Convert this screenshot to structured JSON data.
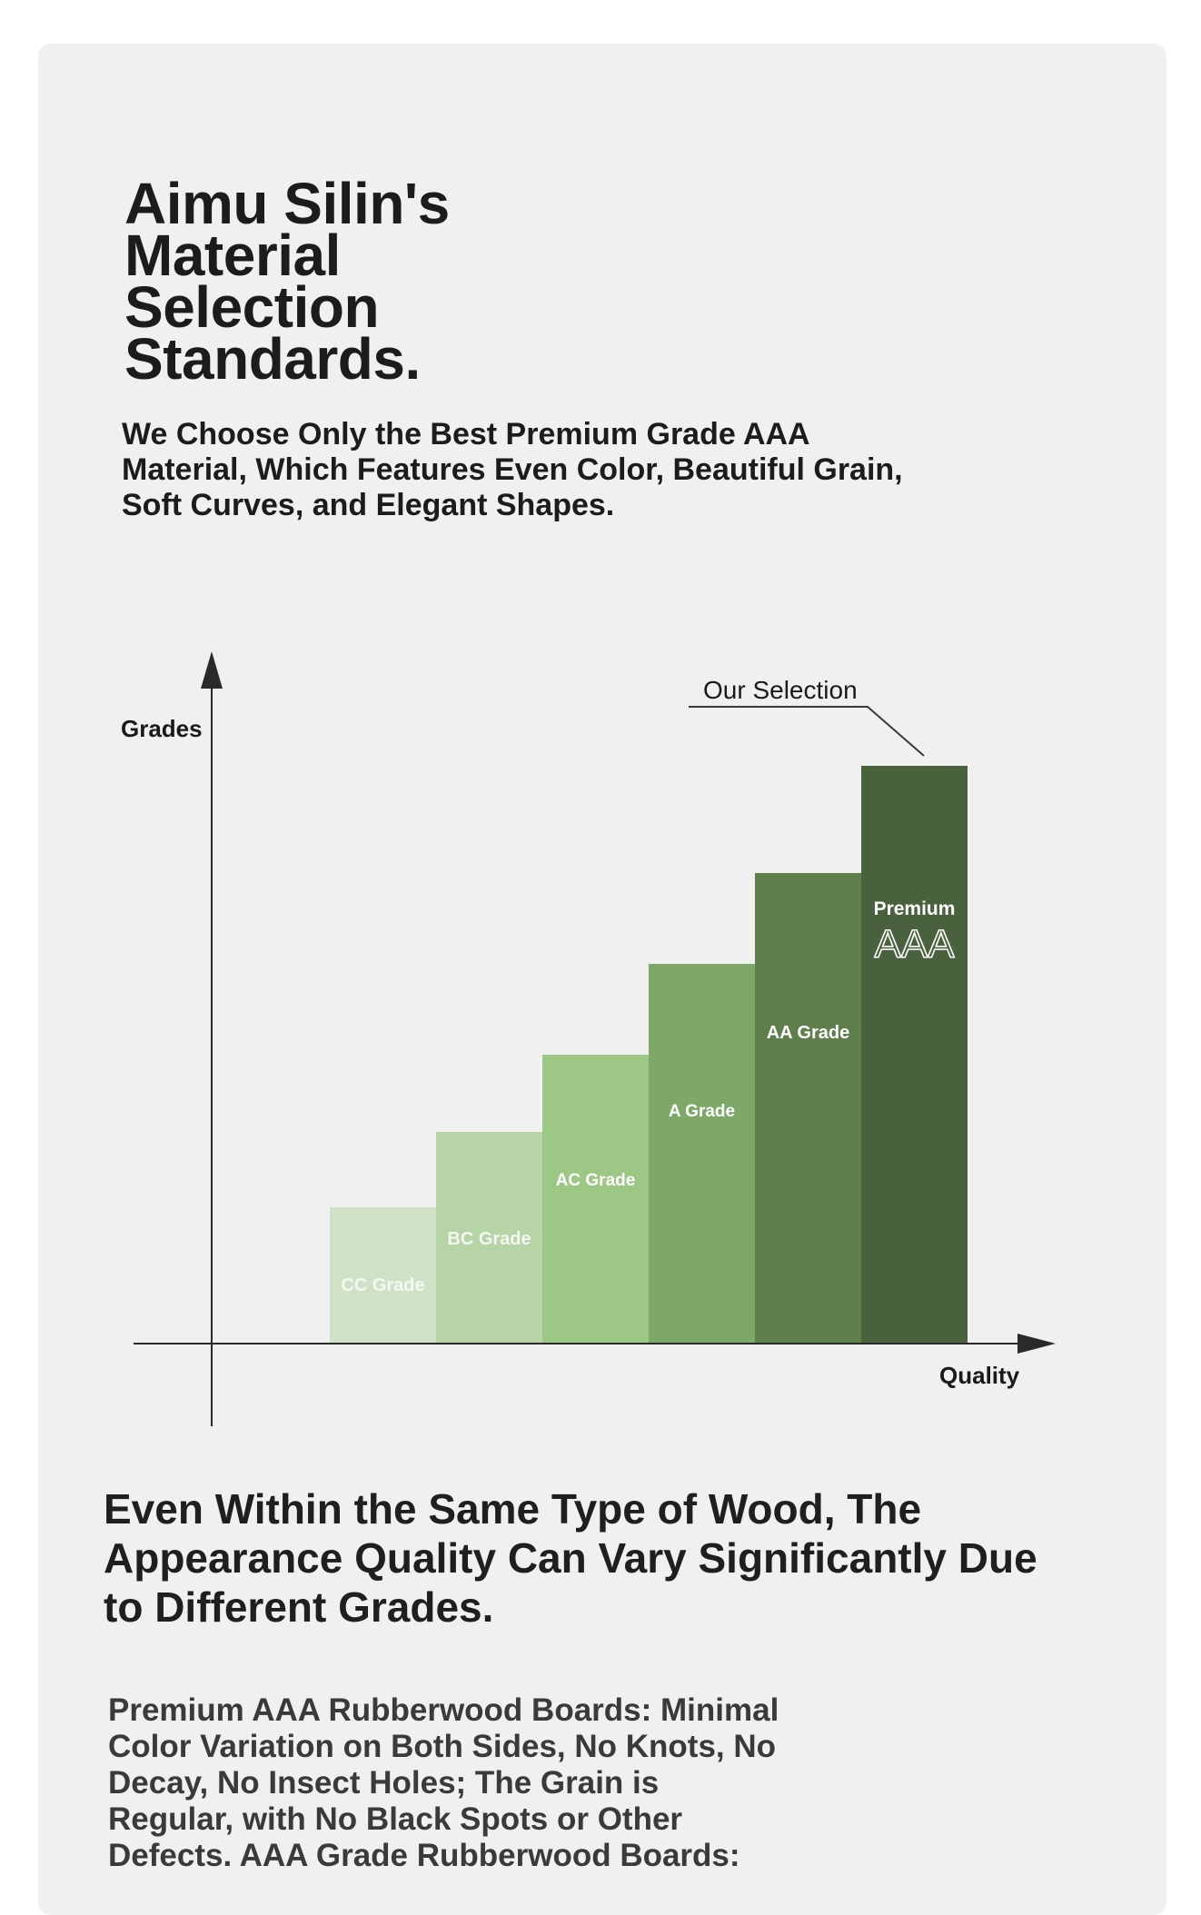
{
  "title_lines": [
    "Aimu Silin's",
    "Material",
    "Selection",
    "Standards."
  ],
  "subtitle_lines": [
    "We Choose Only the Best Premium Grade AAA",
    "Material, Which Features Even Color, Beautiful Grain,",
    "Soft Curves, and Elegant Shapes."
  ],
  "diagram": {
    "y_axis_label": "Grades",
    "x_axis_label": "Quality",
    "callout_label": "Our Selection",
    "grades": [
      {
        "label": "CC Grade",
        "level": 1,
        "color": "#cfe2c6",
        "text_color": "#f4f8f2"
      },
      {
        "label": "BC Grade",
        "level": 2,
        "color": "#b6d4a6",
        "text_color": "#f4f8f2"
      },
      {
        "label": "AC Grade",
        "level": 3,
        "color": "#9dc784",
        "text_color": "#ffffff"
      },
      {
        "label": "A Grade",
        "level": 4,
        "color": "#7ea868",
        "text_color": "#ffffff"
      },
      {
        "label": "AA Grade",
        "level": 5,
        "color": "#5e7f4c",
        "text_color": "#ffffff"
      },
      {
        "label": "Premium",
        "label_big": "AAA",
        "level": 6,
        "color": "#4a613e",
        "text_color": "#ffffff"
      }
    ],
    "axis_color": "#2a2a2a"
  },
  "section_heading_lines": [
    "Even Within the Same Type of Wood, The",
    "Appearance Quality Can Vary Significantly Due",
    "to Different Grades."
  ],
  "body_lines": [
    "Premium AAA Rubberwood Boards: Minimal",
    "Color Variation on Both Sides, No Knots, No",
    "Decay, No Insect Holes; The Grain is",
    "Regular, with No Black Spots or Other",
    "Defects. AAA Grade Rubberwood Boards:"
  ]
}
